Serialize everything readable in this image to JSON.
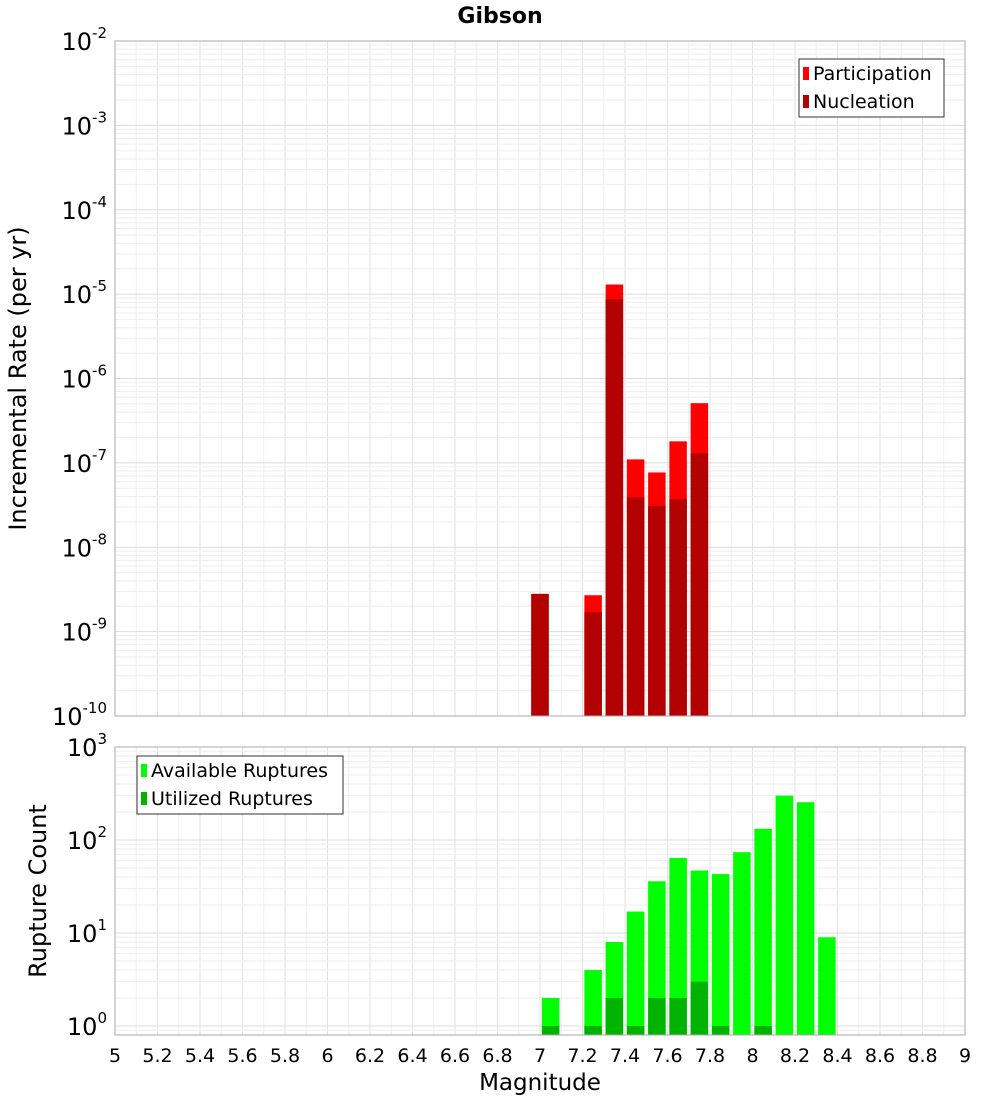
{
  "chart_data": [
    {
      "type": "bar",
      "title": "Gibson",
      "xlabel": "",
      "ylabel": "Incremental Rate (per yr)",
      "yscale": "log",
      "ylim": [
        1e-10,
        0.01
      ],
      "xlim": [
        5,
        9
      ],
      "grid": true,
      "legend_position": "top-right",
      "y_tick_labels": [
        {
          "base": "10",
          "exp": "-10",
          "value": 1e-10
        },
        {
          "base": "10",
          "exp": "-9",
          "value": 1e-09
        },
        {
          "base": "10",
          "exp": "-8",
          "value": 1e-08
        },
        {
          "base": "10",
          "exp": "-7",
          "value": 1e-07
        },
        {
          "base": "10",
          "exp": "-6",
          "value": 1e-06
        },
        {
          "base": "10",
          "exp": "-5",
          "value": 1e-05
        },
        {
          "base": "10",
          "exp": "-4",
          "value": 0.0001
        },
        {
          "base": "10",
          "exp": "-3",
          "value": 0.001
        },
        {
          "base": "10",
          "exp": "-2",
          "value": 0.01
        }
      ],
      "series": [
        {
          "name": "Participation",
          "color": "#ff0000",
          "x": [
            7.0,
            7.25,
            7.35,
            7.45,
            7.55,
            7.65,
            7.75
          ],
          "values": [
            2.8e-09,
            2.7e-09,
            1.3e-05,
            1.1e-07,
            7.7e-08,
            1.8e-07,
            5.1e-07
          ]
        },
        {
          "name": "Nucleation",
          "color": "#b30000",
          "x": [
            7.0,
            7.25,
            7.35,
            7.45,
            7.55,
            7.65,
            7.75
          ],
          "values": [
            2.8e-09,
            1.7e-09,
            8.7e-06,
            3.9e-08,
            3.1e-08,
            3.7e-08,
            1.3e-07
          ]
        }
      ]
    },
    {
      "type": "bar",
      "title": "",
      "xlabel": "Magnitude",
      "ylabel": "Rupture Count",
      "yscale": "log",
      "ylim": [
        0.8,
        1000
      ],
      "xlim": [
        5,
        9
      ],
      "grid": true,
      "legend_position": "top-left",
      "x_tick_labels": [
        "5",
        "5.2",
        "5.4",
        "5.6",
        "5.8",
        "6",
        "6.2",
        "6.4",
        "6.6",
        "6.8",
        "7",
        "7.2",
        "7.4",
        "7.6",
        "7.8",
        "8",
        "8.2",
        "8.4",
        "8.6",
        "8.8",
        "9"
      ],
      "y_tick_labels": [
        {
          "base": "10",
          "exp": "0",
          "value": 1
        },
        {
          "base": "10",
          "exp": "1",
          "value": 10
        },
        {
          "base": "10",
          "exp": "2",
          "value": 100
        },
        {
          "base": "10",
          "exp": "3",
          "value": 1000
        }
      ],
      "series": [
        {
          "name": "Available Ruptures",
          "color": "#00ff00",
          "x": [
            7.05,
            7.25,
            7.35,
            7.45,
            7.55,
            7.65,
            7.75,
            7.85,
            7.95,
            8.05,
            8.15,
            8.25,
            8.35
          ],
          "values": [
            2,
            4,
            8,
            17,
            36,
            64,
            47,
            43,
            74,
            132,
            300,
            255,
            9
          ]
        },
        {
          "name": "Utilized Ruptures",
          "color": "#00b300",
          "x": [
            7.05,
            7.25,
            7.35,
            7.45,
            7.55,
            7.65,
            7.75,
            7.85,
            8.05
          ],
          "values": [
            1,
            1,
            2,
            1,
            2,
            2,
            3,
            1,
            1
          ]
        }
      ]
    }
  ]
}
